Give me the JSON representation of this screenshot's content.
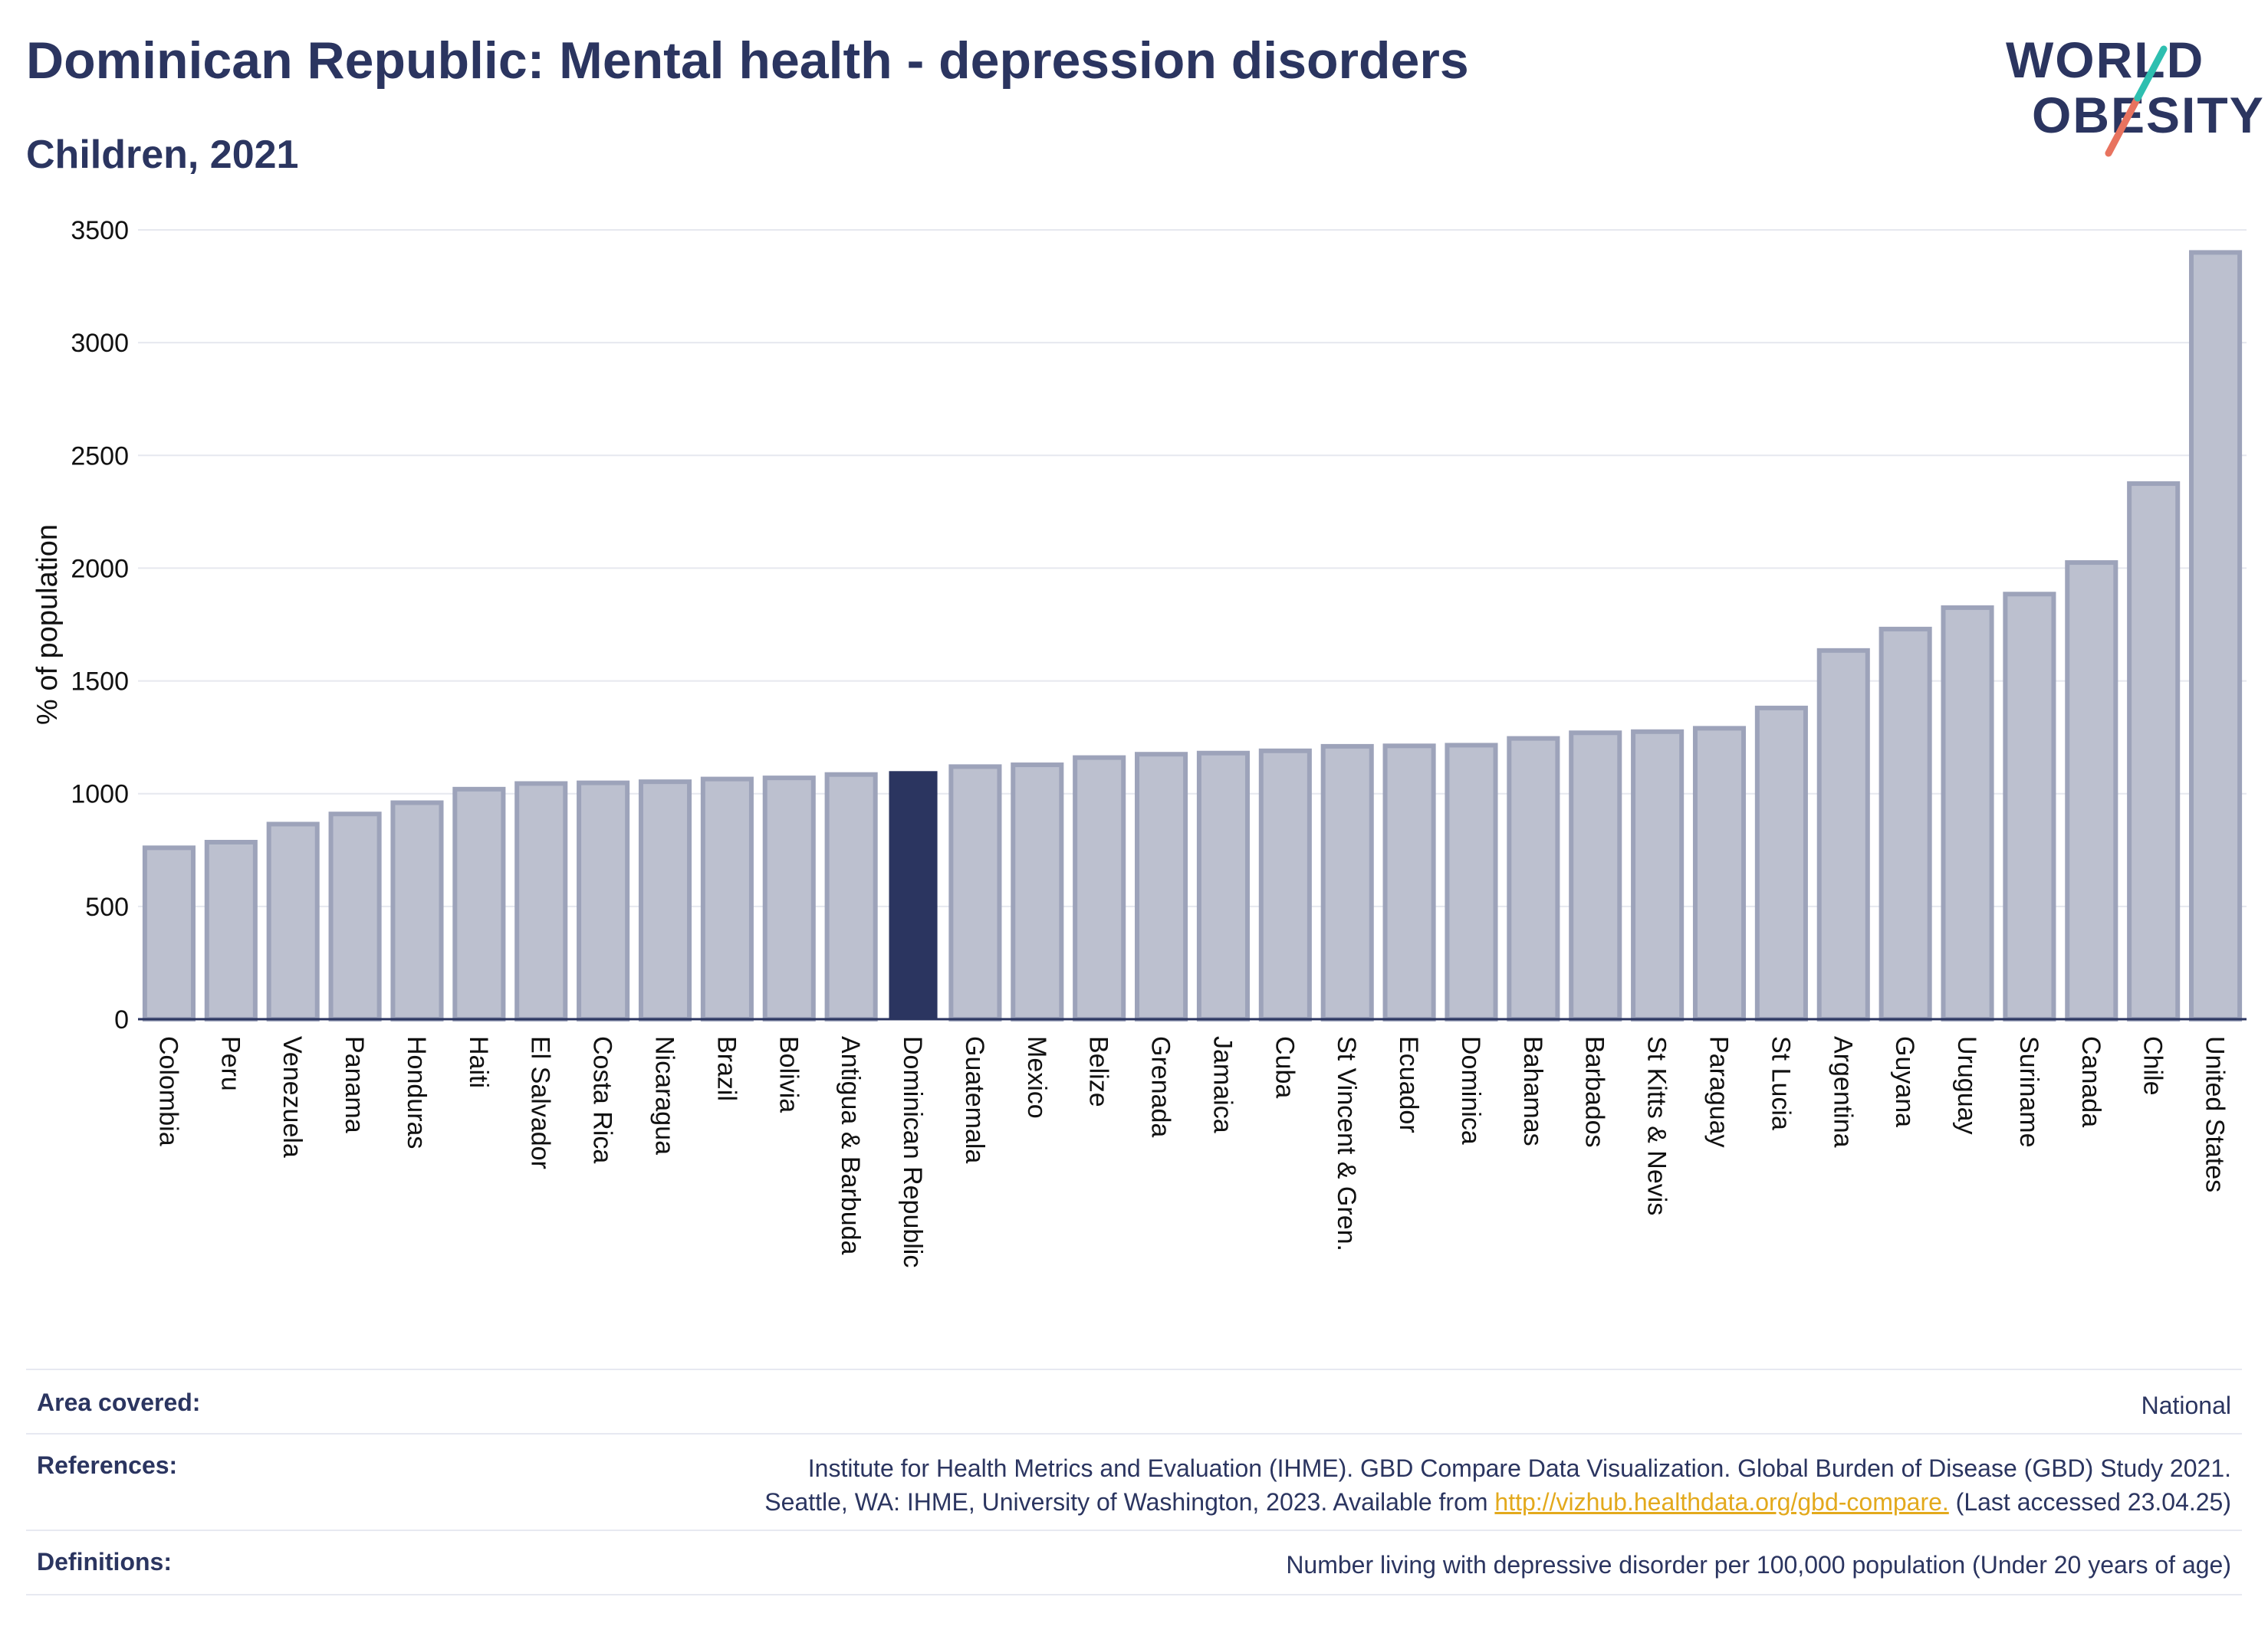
{
  "header": {
    "title": "Dominican Republic: Mental health - depression disorders",
    "subtitle": "Children, 2021"
  },
  "logo": {
    "line1": "WORLD",
    "line2": "OBESITY",
    "colors": {
      "teal": "#2ebfb0",
      "coral": "#e8735f"
    }
  },
  "chart_data": {
    "type": "bar",
    "ylabel": "% of population",
    "xlabel": "",
    "ylim": [
      0,
      3500
    ],
    "yticks": [
      0,
      500,
      1000,
      1500,
      2000,
      2500,
      3000,
      3500
    ],
    "grid": true,
    "highlight": "Dominican Republic",
    "colors": {
      "bar": "#bcc0cf",
      "bar_edge": "#9da3ba",
      "highlight": "#2b3560"
    },
    "categories": [
      "Colombia",
      "Peru",
      "Venezuela",
      "Panama",
      "Honduras",
      "Haiti",
      "El Salvador",
      "Costa Rica",
      "Nicaragua",
      "Brazil",
      "Bolivia",
      "Antigua & Barbuda",
      "Dominican Republic",
      "Guatemala",
      "Mexico",
      "Belize",
      "Grenada",
      "Jamaica",
      "Cuba",
      "St Vincent & Gren.",
      "Ecuador",
      "Dominica",
      "Bahamas",
      "Barbados",
      "St Kitts & Nevis",
      "Paraguay",
      "St Lucia",
      "Argentina",
      "Guyana",
      "Uruguay",
      "Suriname",
      "Canada",
      "Chile",
      "United States"
    ],
    "values": [
      760,
      785,
      865,
      910,
      960,
      1020,
      1045,
      1048,
      1053,
      1065,
      1070,
      1085,
      1100,
      1120,
      1128,
      1160,
      1175,
      1180,
      1190,
      1210,
      1212,
      1215,
      1245,
      1270,
      1275,
      1290,
      1380,
      1635,
      1730,
      1825,
      1885,
      2025,
      2375,
      3400
    ]
  },
  "meta": {
    "area_label": "Area covered:",
    "area_value": "National",
    "ref_label": "References:",
    "ref_line1": "Institute for Health Metrics and Evaluation (IHME). GBD Compare Data Visualization. Global Burden of Disease (GBD) Study 2021.",
    "ref_line2_prefix": "Seattle, WA: IHME, University of Washington, 2023. Available from ",
    "ref_link": "http://vizhub.healthdata.org/gbd-compare.",
    "ref_line2_suffix": " (Last accessed 23.04.25)",
    "def_label": "Definitions:",
    "def_value": "Number living with depressive disorder per 100,000 population (Under 20 years of age)"
  }
}
